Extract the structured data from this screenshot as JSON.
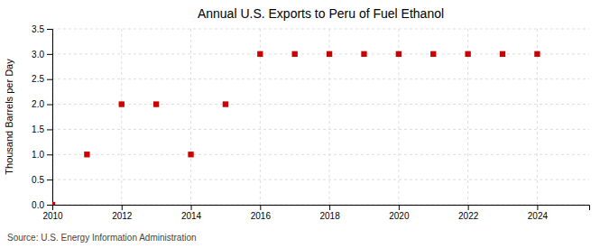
{
  "chart_data": {
    "type": "scatter",
    "title": "Annual U.S. Exports to Peru of Fuel Ethanol",
    "ylabel": "Thousand Barrels per Day",
    "annotations": [
      "Source: U.S. Energy Information Administration"
    ],
    "x": [
      2010,
      2011,
      2012,
      2013,
      2014,
      2015,
      2016,
      2017,
      2018,
      2019,
      2020,
      2021,
      2022,
      2023,
      2024
    ],
    "values": [
      0.0,
      1.0,
      2.0,
      2.0,
      1.0,
      2.0,
      3.0,
      3.0,
      3.0,
      3.0,
      3.0,
      3.0,
      3.0,
      3.0,
      3.0
    ],
    "xlim": [
      2010,
      2025.5
    ],
    "ylim": [
      0.0,
      3.5
    ],
    "xticks": [
      2010,
      2012,
      2014,
      2016,
      2018,
      2020,
      2022,
      2024
    ],
    "yticks": [
      {
        "value": 0.0,
        "label": "0.0"
      },
      0.5,
      {
        "value": 1.0,
        "label": "1.0"
      },
      1.5,
      {
        "value": 2.0,
        "label": "2.0"
      },
      2.5,
      {
        "value": 3.0,
        "label": "3.0"
      },
      3.5
    ],
    "color": "#cc0000",
    "marker": "square",
    "grid": true
  }
}
